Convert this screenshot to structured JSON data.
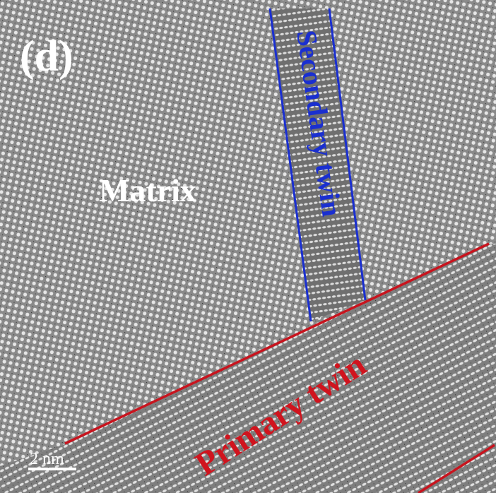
{
  "panel_label": "(d)",
  "labels": {
    "matrix": "Matrix",
    "secondary_twin": "Secondary twin",
    "primary_twin": "Primary twin"
  },
  "scale_bar": "2 nm"
}
